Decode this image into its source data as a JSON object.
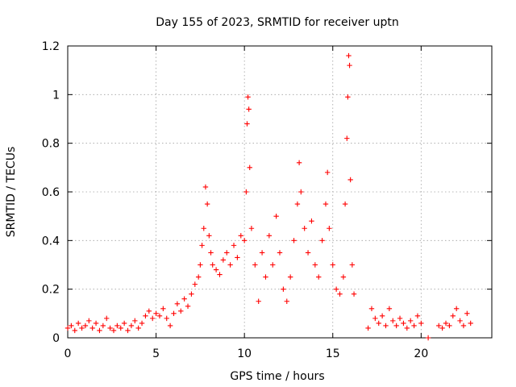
{
  "chart_data": {
    "type": "scatter",
    "title": "Day 155 of 2023, SRMTID for receiver uptn",
    "xlabel": "GPS time / hours",
    "ylabel": "SRMTID / TECUs",
    "xlim": [
      0,
      24
    ],
    "ylim": [
      0,
      1.2
    ],
    "x_ticks": [
      0,
      5,
      10,
      15,
      20
    ],
    "x_tick_labels": [
      "0",
      "5",
      "10",
      "15",
      "20"
    ],
    "y_ticks": [
      0,
      0.2,
      0.4,
      0.6,
      0.8,
      1.0,
      1.2
    ],
    "y_tick_labels": [
      "0",
      "0.2",
      "0.4",
      "0.6",
      "0.8",
      "1",
      "1.2"
    ],
    "grid": true,
    "marker": "plus",
    "color": "#ff0000",
    "series": [
      {
        "name": "SRMTID",
        "points": [
          [
            0.0,
            0.04
          ],
          [
            0.2,
            0.05
          ],
          [
            0.4,
            0.03
          ],
          [
            0.6,
            0.06
          ],
          [
            0.8,
            0.04
          ],
          [
            1.0,
            0.05
          ],
          [
            1.2,
            0.07
          ],
          [
            1.4,
            0.04
          ],
          [
            1.6,
            0.06
          ],
          [
            1.8,
            0.03
          ],
          [
            2.0,
            0.05
          ],
          [
            2.2,
            0.08
          ],
          [
            2.4,
            0.04
          ],
          [
            2.6,
            0.03
          ],
          [
            2.8,
            0.05
          ],
          [
            3.0,
            0.04
          ],
          [
            3.2,
            0.06
          ],
          [
            3.4,
            0.03
          ],
          [
            3.6,
            0.05
          ],
          [
            3.8,
            0.07
          ],
          [
            4.0,
            0.04
          ],
          [
            4.2,
            0.06
          ],
          [
            4.4,
            0.09
          ],
          [
            4.6,
            0.11
          ],
          [
            4.8,
            0.08
          ],
          [
            5.0,
            0.1
          ],
          [
            5.2,
            0.09
          ],
          [
            5.4,
            0.12
          ],
          [
            5.6,
            0.08
          ],
          [
            5.8,
            0.05
          ],
          [
            6.0,
            0.1
          ],
          [
            6.2,
            0.14
          ],
          [
            6.4,
            0.11
          ],
          [
            6.6,
            0.16
          ],
          [
            6.8,
            0.13
          ],
          [
            7.0,
            0.18
          ],
          [
            7.2,
            0.22
          ],
          [
            7.4,
            0.25
          ],
          [
            7.5,
            0.3
          ],
          [
            7.6,
            0.38
          ],
          [
            7.7,
            0.45
          ],
          [
            7.8,
            0.62
          ],
          [
            7.9,
            0.55
          ],
          [
            8.0,
            0.42
          ],
          [
            8.1,
            0.35
          ],
          [
            8.2,
            0.3
          ],
          [
            8.4,
            0.28
          ],
          [
            8.6,
            0.26
          ],
          [
            8.8,
            0.32
          ],
          [
            9.0,
            0.35
          ],
          [
            9.2,
            0.3
          ],
          [
            9.4,
            0.38
          ],
          [
            9.6,
            0.33
          ],
          [
            9.8,
            0.42
          ],
          [
            10.0,
            0.4
          ],
          [
            10.1,
            0.6
          ],
          [
            10.15,
            0.88
          ],
          [
            10.2,
            0.99
          ],
          [
            10.25,
            0.94
          ],
          [
            10.3,
            0.7
          ],
          [
            10.4,
            0.45
          ],
          [
            10.6,
            0.3
          ],
          [
            10.8,
            0.15
          ],
          [
            11.0,
            0.35
          ],
          [
            11.2,
            0.25
          ],
          [
            11.4,
            0.42
          ],
          [
            11.6,
            0.3
          ],
          [
            11.8,
            0.5
          ],
          [
            12.0,
            0.35
          ],
          [
            12.2,
            0.2
          ],
          [
            12.4,
            0.15
          ],
          [
            12.6,
            0.25
          ],
          [
            12.8,
            0.4
          ],
          [
            13.0,
            0.55
          ],
          [
            13.1,
            0.72
          ],
          [
            13.2,
            0.6
          ],
          [
            13.4,
            0.45
          ],
          [
            13.6,
            0.35
          ],
          [
            13.8,
            0.48
          ],
          [
            14.0,
            0.3
          ],
          [
            14.2,
            0.25
          ],
          [
            14.4,
            0.4
          ],
          [
            14.6,
            0.55
          ],
          [
            14.7,
            0.68
          ],
          [
            14.8,
            0.45
          ],
          [
            15.0,
            0.3
          ],
          [
            15.2,
            0.2
          ],
          [
            15.4,
            0.18
          ],
          [
            15.6,
            0.25
          ],
          [
            15.7,
            0.55
          ],
          [
            15.8,
            0.82
          ],
          [
            15.85,
            0.99
          ],
          [
            15.9,
            1.16
          ],
          [
            15.95,
            1.12
          ],
          [
            16.0,
            0.65
          ],
          [
            16.1,
            0.3
          ],
          [
            16.2,
            0.18
          ],
          [
            17.0,
            0.04
          ],
          [
            17.2,
            0.12
          ],
          [
            17.4,
            0.08
          ],
          [
            17.6,
            0.06
          ],
          [
            17.8,
            0.09
          ],
          [
            18.0,
            0.05
          ],
          [
            18.2,
            0.12
          ],
          [
            18.4,
            0.07
          ],
          [
            18.6,
            0.05
          ],
          [
            18.8,
            0.08
          ],
          [
            19.0,
            0.06
          ],
          [
            19.2,
            0.04
          ],
          [
            19.4,
            0.07
          ],
          [
            19.6,
            0.05
          ],
          [
            19.8,
            0.09
          ],
          [
            20.0,
            0.06
          ],
          [
            20.4,
            0.0
          ],
          [
            21.0,
            0.05
          ],
          [
            21.2,
            0.04
          ],
          [
            21.4,
            0.06
          ],
          [
            21.6,
            0.05
          ],
          [
            21.8,
            0.09
          ],
          [
            22.0,
            0.12
          ],
          [
            22.2,
            0.07
          ],
          [
            22.4,
            0.05
          ],
          [
            22.6,
            0.1
          ],
          [
            22.8,
            0.06
          ]
        ]
      }
    ]
  }
}
